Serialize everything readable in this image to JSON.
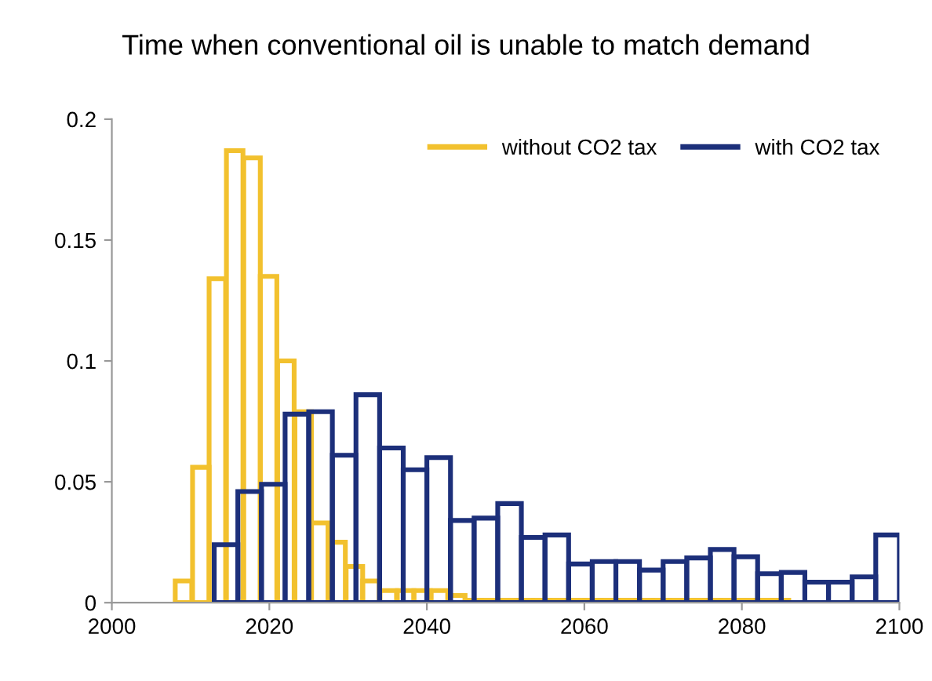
{
  "chart_data": {
    "type": "bar",
    "title": "Time when conventional oil is unable to match demand",
    "series": [
      {
        "name": "without CO2 tax",
        "color": "#f2c12e",
        "x": [
          2009.1,
          2011.3,
          2013.4,
          2015.6,
          2017.8,
          2019.9,
          2022.1,
          2024.3,
          2026.4,
          2028.6,
          2030.8,
          2032.9,
          2035.1,
          2037.3,
          2039.4,
          2041.6,
          2043.8,
          2045.9,
          2048.1,
          2050.3,
          2052.4,
          2054.6,
          2056.8,
          2058.9,
          2061.1,
          2063.3,
          2065.4,
          2067.6,
          2069.8,
          2071.9,
          2074.1,
          2076.3,
          2078.4,
          2080.6,
          2082.8,
          2084.9
        ],
        "values": [
          0.009,
          0.056,
          0.134,
          0.187,
          0.184,
          0.135,
          0.1,
          0.079,
          0.033,
          0.025,
          0.015,
          0.009,
          0.005,
          0.005,
          0.005,
          0.005,
          0.003,
          0.001,
          0.001,
          0.001,
          0.001,
          0.001,
          0.001,
          0.001,
          0.001,
          0.001,
          0.001,
          0.001,
          0.001,
          0.001,
          0.001,
          0.001,
          0.001,
          0.001,
          0.001,
          0.001
        ]
      },
      {
        "name": "with CO2 tax",
        "color": "#1c2f7a",
        "x": [
          2014.5,
          2017.5,
          2020.5,
          2023.5,
          2026.5,
          2029.5,
          2032.5,
          2035.5,
          2038.5,
          2041.5,
          2044.5,
          2047.5,
          2050.5,
          2053.5,
          2056.5,
          2059.5,
          2062.5,
          2065.5,
          2068.5,
          2071.5,
          2074.5,
          2077.5,
          2080.5,
          2083.5,
          2086.5,
          2089.5,
          2092.5,
          2095.5,
          2098.5
        ],
        "values": [
          0.024,
          0.046,
          0.049,
          0.078,
          0.079,
          0.061,
          0.086,
          0.064,
          0.055,
          0.06,
          0.034,
          0.035,
          0.041,
          0.027,
          0.028,
          0.016,
          0.017,
          0.017,
          0.0135,
          0.017,
          0.0185,
          0.022,
          0.019,
          0.012,
          0.0125,
          0.0085,
          0.0085,
          0.0107,
          0.028
        ]
      }
    ],
    "xlim": [
      2000,
      2100
    ],
    "xticks": [
      2000,
      2020,
      2040,
      2060,
      2080,
      2100
    ],
    "ylim": [
      0,
      0.2
    ],
    "yticks": [
      0,
      0.05,
      0.1,
      0.15,
      0.2
    ],
    "legend": "top right"
  }
}
